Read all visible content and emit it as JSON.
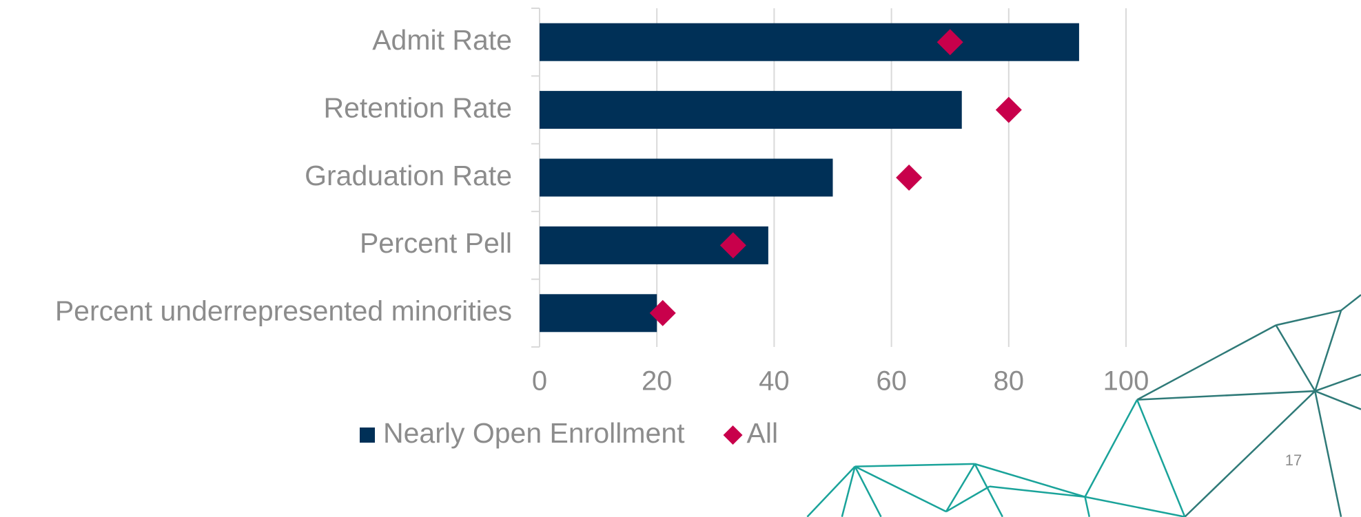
{
  "chart_data": {
    "type": "bar",
    "orientation": "horizontal",
    "categories": [
      "Admit Rate",
      "Retention Rate",
      "Graduation Rate",
      "Percent Pell",
      "Percent underrepresented minorities"
    ],
    "series": [
      {
        "name": "Nearly Open Enrollment",
        "color": "#003057",
        "marker": "bar",
        "values": [
          92,
          72,
          50,
          39,
          20
        ]
      },
      {
        "name": "All",
        "color": "#c8004b",
        "marker": "diamond",
        "values": [
          70,
          80,
          63,
          33,
          21
        ]
      }
    ],
    "xlim": [
      0,
      100
    ],
    "xticks": [
      0,
      20,
      40,
      60,
      80,
      100
    ],
    "grid": true,
    "legend": "bottom"
  },
  "page_number": "17"
}
